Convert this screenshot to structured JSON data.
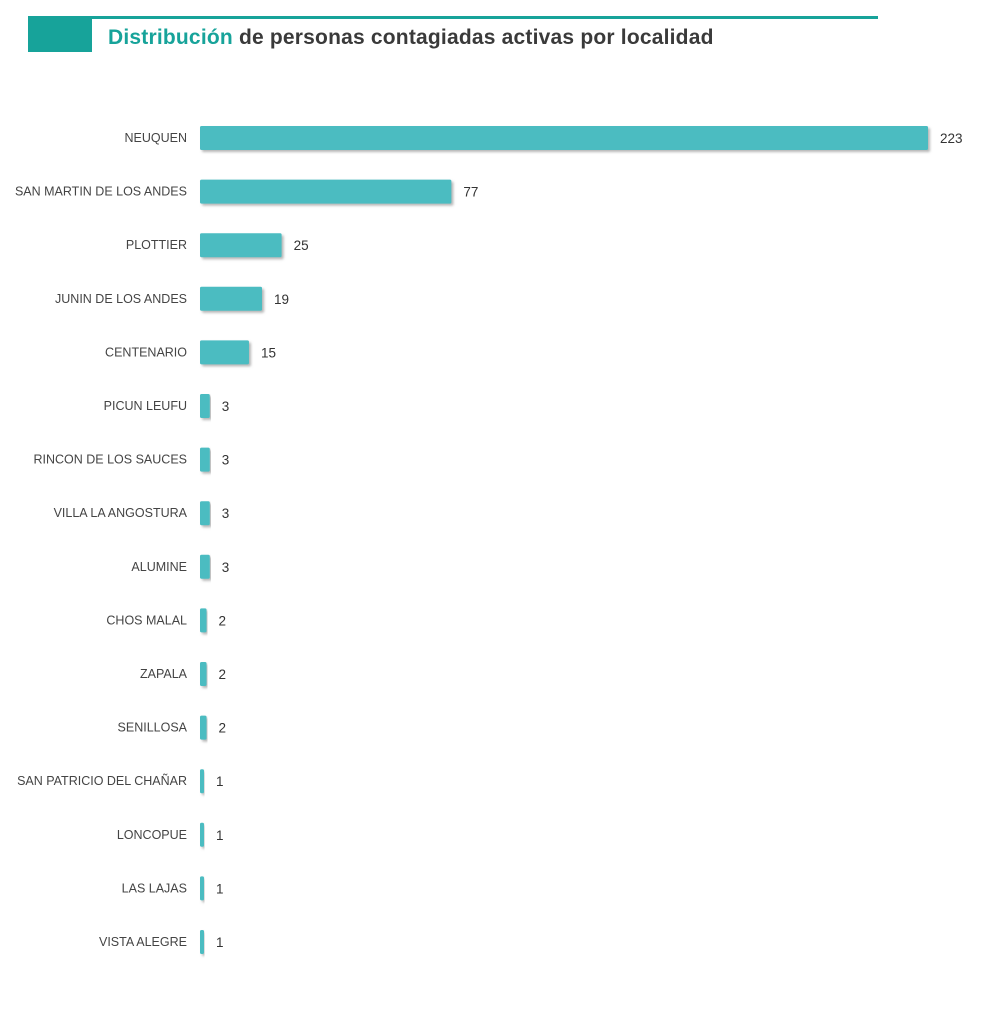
{
  "header": {
    "title_accent": "Distribución",
    "title_rest": "de personas contagiadas activas por localidad"
  },
  "colors": {
    "accent": "#17a39a",
    "bar": "#4bbcc1",
    "bar_shadow": "#8a8a8a"
  },
  "chart_data": {
    "type": "bar",
    "orientation": "horizontal",
    "title": "Distribución de personas contagiadas activas por localidad",
    "xlabel": "",
    "ylabel": "",
    "grid": false,
    "legend": "none",
    "xlim": [
      0,
      223
    ],
    "categories": [
      "NEUQUEN",
      "SAN MARTIN DE LOS ANDES",
      "PLOTTIER",
      "JUNIN DE LOS ANDES",
      "CENTENARIO",
      "PICUN LEUFU",
      "RINCON DE LOS SAUCES",
      "VILLA LA ANGOSTURA",
      "ALUMINE",
      "CHOS MALAL",
      "ZAPALA",
      "SENILLOSA",
      "SAN PATRICIO DEL CHAÑAR",
      "LONCOPUE",
      "LAS LAJAS",
      "VISTA ALEGRE"
    ],
    "values": [
      223,
      77,
      25,
      19,
      15,
      3,
      3,
      3,
      3,
      2,
      2,
      2,
      1,
      1,
      1,
      1
    ]
  }
}
